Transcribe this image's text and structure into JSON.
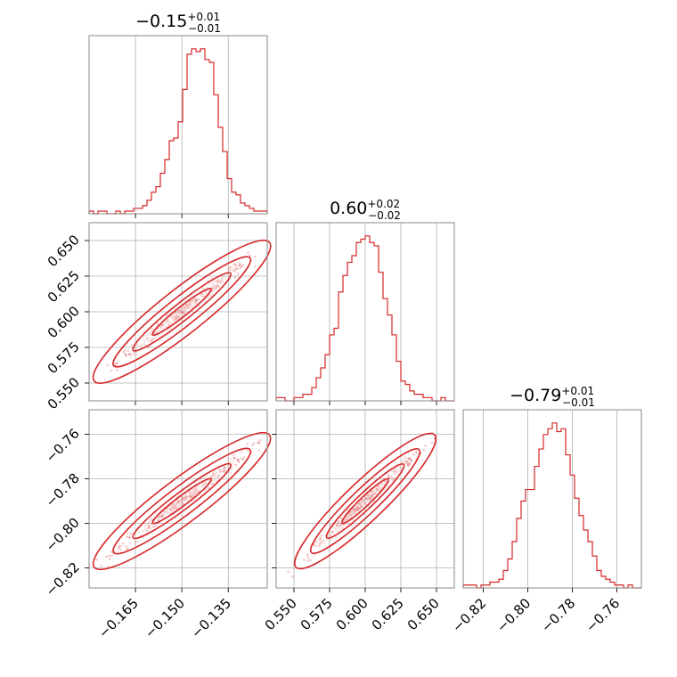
{
  "chart_data": {
    "type": "corner",
    "color": "#d62728",
    "parameters": [
      {
        "median": -0.15,
        "err_plus": 0.01,
        "err_minus": 0.01,
        "title_main": "−0.15",
        "title_sup": "+0.01",
        "title_sub": "−0.01",
        "range": [
          -0.18,
          -0.1224
        ],
        "ticks": [
          -0.165,
          -0.15,
          -0.135
        ],
        "tick_labels": [
          "−0.165",
          "−0.150",
          "−0.135"
        ],
        "std": 0.0105
      },
      {
        "median": 0.6,
        "err_plus": 0.02,
        "err_minus": 0.02,
        "title_main": "0.60",
        "title_sup": "+0.02",
        "title_sub": "−0.02",
        "range": [
          0.5375,
          0.6625
        ],
        "ticks": [
          0.55,
          0.575,
          0.6,
          0.625,
          0.65
        ],
        "tick_labels": [
          "0.550",
          "0.575",
          "0.600",
          "0.625",
          "0.650"
        ],
        "std": 0.018
      },
      {
        "median": -0.79,
        "err_plus": 0.01,
        "err_minus": 0.01,
        "title_main": "−0.79",
        "title_sup": "+0.01",
        "title_sub": "−0.01",
        "range": [
          -0.829,
          -0.749
        ],
        "ticks": [
          -0.82,
          -0.8,
          -0.78,
          -0.76
        ],
        "tick_labels": [
          "−0.82",
          "−0.80",
          "−0.78",
          "−0.76"
        ],
        "std": 0.011
      }
    ],
    "histograms": [
      {
        "bin_edges_range": [
          -0.18,
          -0.1224
        ],
        "counts": [
          1,
          0,
          1,
          1,
          0,
          0,
          1,
          0,
          1,
          1,
          2,
          2,
          3,
          5,
          8,
          10,
          15,
          20,
          27,
          28,
          34,
          46,
          59,
          61,
          60,
          61,
          57,
          56,
          44,
          32,
          23,
          13,
          8,
          7,
          4,
          3,
          2,
          1,
          1,
          1
        ]
      },
      {
        "bin_edges_range": [
          0.5375,
          0.6625
        ],
        "counts": [
          1,
          1,
          0,
          0,
          1,
          1,
          2,
          2,
          4,
          7,
          10,
          14,
          20,
          22,
          33,
          38,
          42,
          44,
          48,
          49,
          50,
          48,
          47,
          39,
          31,
          26,
          20,
          12,
          6,
          5,
          3,
          2,
          2,
          1,
          1,
          0,
          0,
          1,
          0,
          0
        ]
      },
      {
        "bin_edges_range": [
          -0.829,
          -0.749
        ],
        "counts": [
          1,
          1,
          1,
          0,
          1,
          1,
          2,
          2,
          3,
          6,
          10,
          16,
          24,
          30,
          34,
          34,
          42,
          48,
          53,
          55,
          57,
          54,
          55,
          46,
          39,
          31,
          25,
          20,
          16,
          11,
          6,
          4,
          3,
          2,
          1,
          1,
          0,
          1,
          0,
          0
        ]
      }
    ],
    "grid": true
  }
}
